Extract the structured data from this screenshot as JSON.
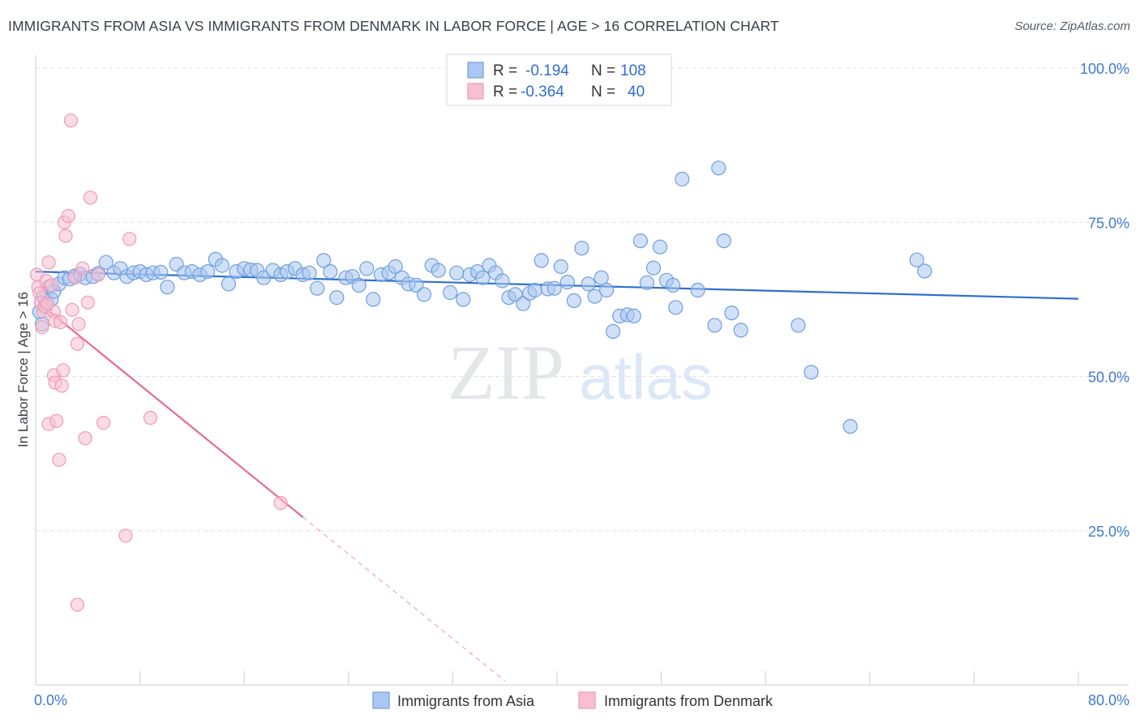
{
  "title": "IMMIGRANTS FROM ASIA VS IMMIGRANTS FROM DENMARK IN LABOR FORCE | AGE > 16 CORRELATION CHART",
  "source": "Source: ZipAtlas.com",
  "watermark": {
    "zip": "ZIP",
    "atlas": "atlas"
  },
  "legend": {
    "rows": [
      {
        "r_label": "R =",
        "r_value": "-0.194",
        "n_label": "N =",
        "n_value": "108",
        "color": "#6fa0e8"
      },
      {
        "r_label": "R =",
        "r_value": "-0.364",
        "n_label": "N =",
        "n_value": "40",
        "color": "#f29bb8"
      }
    ]
  },
  "colors": {
    "asia_fill": "#a9c7f0",
    "asia_stroke": "#6f9fe0",
    "asia_line": "#2f6fcf",
    "denmark_fill": "#f7bfd1",
    "denmark_stroke": "#ee9ab6",
    "denmark_line": "#e8699a",
    "grid": "#dde1e8",
    "axis_label": "#3f7ad0"
  },
  "chart_data": {
    "type": "scatter",
    "title": "IMMIGRANTS FROM ASIA VS IMMIGRANTS FROM DENMARK IN LABOR FORCE | AGE > 16 CORRELATION CHART",
    "xlabel": "",
    "ylabel": "In Labor Force | Age > 16",
    "xlim": [
      0,
      80
    ],
    "ylim": [
      0,
      103
    ],
    "x_tick_labels": [
      "0.0%",
      "80.0%"
    ],
    "y_ticks": [
      25,
      50,
      75,
      100
    ],
    "y_tick_labels": [
      "25.0%",
      "50.0%",
      "75.0%",
      "100.0%"
    ],
    "grid": "horizontal dashed",
    "legend_position": "top-center",
    "series": [
      {
        "name": "Immigrants from Asia",
        "trend": {
          "x": [
            0,
            80
          ],
          "y": [
            67.0,
            62.6
          ],
          "style": "solid"
        },
        "points": [
          [
            0.3,
            60.5
          ],
          [
            0.5,
            58.5
          ],
          [
            0.6,
            63.0
          ],
          [
            0.8,
            61.5
          ],
          [
            1.0,
            64.5
          ],
          [
            1.2,
            62.5
          ],
          [
            1.4,
            63.8
          ],
          [
            1.8,
            65.0
          ],
          [
            2.2,
            66.0
          ],
          [
            2.6,
            65.8
          ],
          [
            3.0,
            66.3
          ],
          [
            3.4,
            66.6
          ],
          [
            3.8,
            66.0
          ],
          [
            4.4,
            66.2
          ],
          [
            4.8,
            66.7
          ],
          [
            5.4,
            68.5
          ],
          [
            6.0,
            66.8
          ],
          [
            6.5,
            67.5
          ],
          [
            7.0,
            66.2
          ],
          [
            7.5,
            66.8
          ],
          [
            8.0,
            67.0
          ],
          [
            8.5,
            66.5
          ],
          [
            9.0,
            66.8
          ],
          [
            9.6,
            66.9
          ],
          [
            10.1,
            64.5
          ],
          [
            10.8,
            68.2
          ],
          [
            11.4,
            66.8
          ],
          [
            12.0,
            67.0
          ],
          [
            12.6,
            66.5
          ],
          [
            13.2,
            67.0
          ],
          [
            13.8,
            69.0
          ],
          [
            14.3,
            68.0
          ],
          [
            14.8,
            65.0
          ],
          [
            15.4,
            67.0
          ],
          [
            16.0,
            67.5
          ],
          [
            16.5,
            67.3
          ],
          [
            17.0,
            67.2
          ],
          [
            17.5,
            66.0
          ],
          [
            18.2,
            67.2
          ],
          [
            18.8,
            66.5
          ],
          [
            19.3,
            67.0
          ],
          [
            19.9,
            67.5
          ],
          [
            20.5,
            66.5
          ],
          [
            21.0,
            66.8
          ],
          [
            21.6,
            64.3
          ],
          [
            22.1,
            68.8
          ],
          [
            22.6,
            67.0
          ],
          [
            23.1,
            62.8
          ],
          [
            23.8,
            66.0
          ],
          [
            24.3,
            66.2
          ],
          [
            24.8,
            64.8
          ],
          [
            25.4,
            67.5
          ],
          [
            25.9,
            62.5
          ],
          [
            26.5,
            66.5
          ],
          [
            27.1,
            66.8
          ],
          [
            27.6,
            67.8
          ],
          [
            28.1,
            66.0
          ],
          [
            28.6,
            65.0
          ],
          [
            29.2,
            64.8
          ],
          [
            29.8,
            63.3
          ],
          [
            30.4,
            68.0
          ],
          [
            30.9,
            67.2
          ],
          [
            31.8,
            63.6
          ],
          [
            32.3,
            66.8
          ],
          [
            32.8,
            62.5
          ],
          [
            33.3,
            66.5
          ],
          [
            33.9,
            67.0
          ],
          [
            34.3,
            66.0
          ],
          [
            34.8,
            68.0
          ],
          [
            35.3,
            66.8
          ],
          [
            35.8,
            65.5
          ],
          [
            36.3,
            62.8
          ],
          [
            36.8,
            63.3
          ],
          [
            37.4,
            61.8
          ],
          [
            37.9,
            63.5
          ],
          [
            38.3,
            64.0
          ],
          [
            38.8,
            68.8
          ],
          [
            39.3,
            64.2
          ],
          [
            39.8,
            64.3
          ],
          [
            40.3,
            67.8
          ],
          [
            40.8,
            65.3
          ],
          [
            41.3,
            62.3
          ],
          [
            41.9,
            70.8
          ],
          [
            42.4,
            65.0
          ],
          [
            42.9,
            63.0
          ],
          [
            43.4,
            66.0
          ],
          [
            43.8,
            64.0
          ],
          [
            44.3,
            57.3
          ],
          [
            44.8,
            59.8
          ],
          [
            45.4,
            60.0
          ],
          [
            45.9,
            59.8
          ],
          [
            46.4,
            72.0
          ],
          [
            46.9,
            65.2
          ],
          [
            47.4,
            67.6
          ],
          [
            47.9,
            71.0
          ],
          [
            48.4,
            65.6
          ],
          [
            48.9,
            64.8
          ],
          [
            49.1,
            61.2
          ],
          [
            49.6,
            82.0
          ],
          [
            50.8,
            64.0
          ],
          [
            52.1,
            58.3
          ],
          [
            52.4,
            83.8
          ],
          [
            52.8,
            72.0
          ],
          [
            53.4,
            60.3
          ],
          [
            54.1,
            57.5
          ],
          [
            58.5,
            58.3
          ],
          [
            59.5,
            50.7
          ],
          [
            62.5,
            41.9
          ],
          [
            67.6,
            68.9
          ],
          [
            68.2,
            67.1
          ]
        ]
      },
      {
        "name": "Immigrants from Denmark",
        "trend": {
          "x": [
            0.2,
            20.5
          ],
          "y": [
            62.0,
            27.2
          ],
          "style": "solid",
          "dashed_extension_x": [
            20.5,
            36.0
          ]
        },
        "points": [
          [
            0.1,
            66.5
          ],
          [
            0.2,
            64.5
          ],
          [
            0.3,
            63.5
          ],
          [
            0.4,
            62.0
          ],
          [
            0.5,
            58.0
          ],
          [
            0.6,
            60.5
          ],
          [
            0.7,
            61.3
          ],
          [
            0.8,
            65.5
          ],
          [
            1.0,
            68.5
          ],
          [
            1.2,
            64.8
          ],
          [
            1.4,
            60.5
          ],
          [
            1.5,
            59.0
          ],
          [
            1.0,
            42.3
          ],
          [
            1.4,
            50.2
          ],
          [
            1.5,
            49.0
          ],
          [
            1.6,
            42.8
          ],
          [
            1.8,
            36.5
          ],
          [
            1.9,
            58.8
          ],
          [
            2.0,
            48.5
          ],
          [
            2.1,
            51.0
          ],
          [
            2.2,
            75.0
          ],
          [
            2.3,
            72.8
          ],
          [
            2.5,
            76.0
          ],
          [
            2.7,
            91.5
          ],
          [
            2.8,
            60.8
          ],
          [
            3.0,
            66.0
          ],
          [
            3.2,
            55.3
          ],
          [
            3.3,
            58.5
          ],
          [
            3.2,
            13.0
          ],
          [
            3.6,
            67.5
          ],
          [
            3.8,
            40.0
          ],
          [
            4.0,
            62.0
          ],
          [
            4.2,
            79.0
          ],
          [
            4.8,
            66.5
          ],
          [
            5.2,
            42.5
          ],
          [
            6.9,
            24.2
          ],
          [
            7.2,
            72.3
          ],
          [
            8.8,
            43.3
          ],
          [
            18.8,
            29.5
          ],
          [
            0.9,
            61.8
          ]
        ]
      }
    ]
  }
}
